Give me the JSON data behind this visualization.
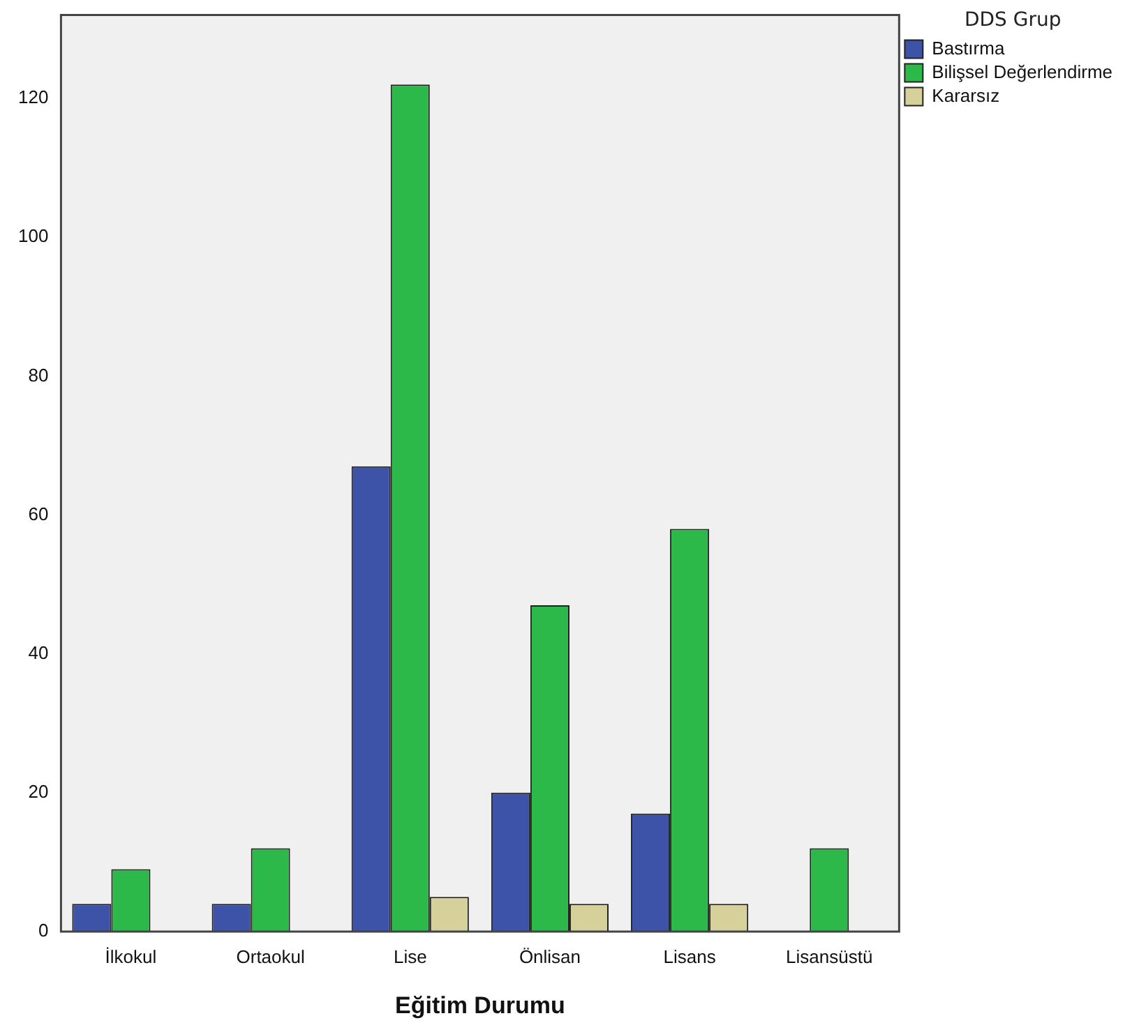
{
  "chart_data": {
    "type": "bar",
    "xlabel": "Eğitim Durumu",
    "legend_title": "DDS Grup",
    "legend": "top right",
    "grid": false,
    "categories": [
      "İlkokul",
      "Ortaokul",
      "Lise",
      "Önlisan",
      "Lisans",
      "Lisansüstü"
    ],
    "ylim": [
      0,
      132
    ],
    "yticks": [
      0,
      20,
      40,
      60,
      80,
      100,
      120
    ],
    "series": [
      {
        "name": "Bastırma",
        "color": "#3d53a8",
        "values": [
          4,
          4,
          67,
          20,
          17,
          null
        ]
      },
      {
        "name": "Bilişsel Değerlendirme",
        "color": "#2db84a",
        "values": [
          9,
          12,
          122,
          47,
          58,
          12
        ]
      },
      {
        "name": "Kararsız",
        "color": "#d6d19a",
        "values": [
          null,
          null,
          5,
          4,
          4,
          null
        ]
      }
    ]
  }
}
